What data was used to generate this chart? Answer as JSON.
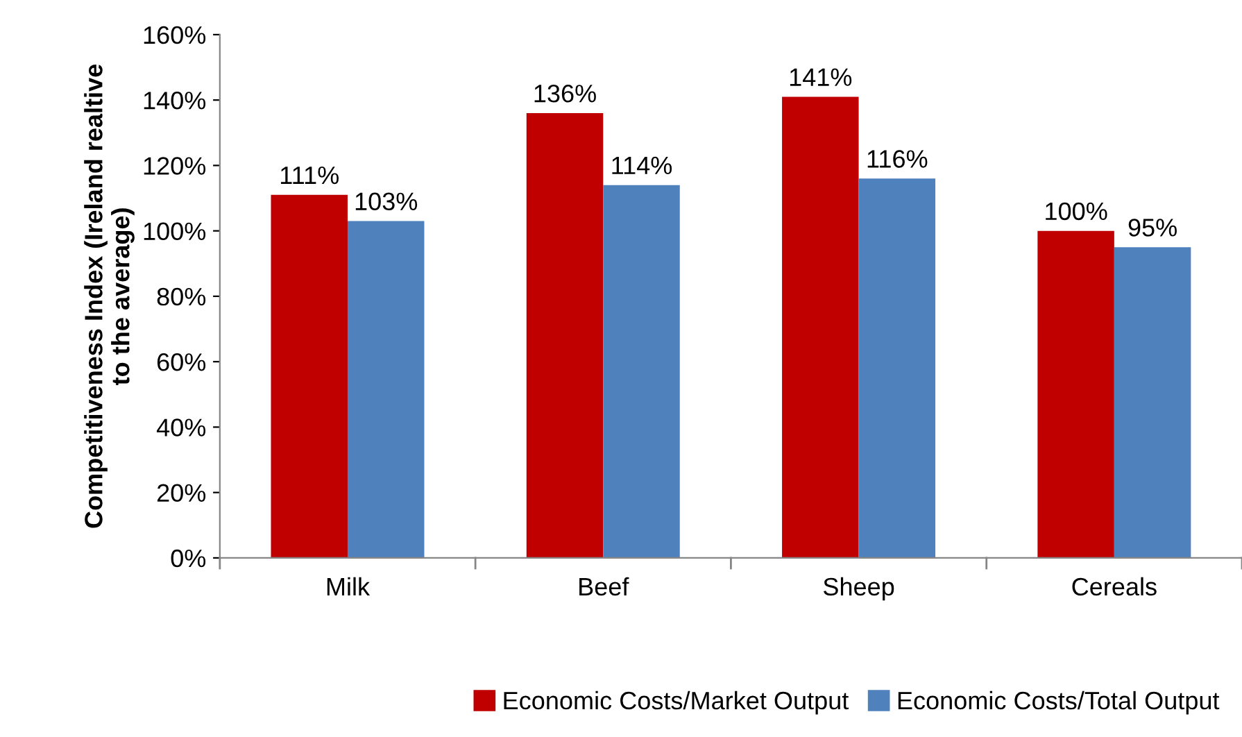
{
  "chart_data": {
    "type": "bar",
    "ylabel": "Competitiveness Index (Ireland realtive\nto the average)",
    "categories": [
      "Milk",
      "Beef",
      "Sheep",
      "Cereals"
    ],
    "series": [
      {
        "name": "Economic Costs/Market Output",
        "color": "#c00000",
        "values": [
          111,
          136,
          141,
          100
        ],
        "value_labels": [
          "111%",
          "136%",
          "141%",
          "100%"
        ]
      },
      {
        "name": "Economic Costs/Total Output",
        "color": "#4f81bd",
        "values": [
          103,
          114,
          116,
          95
        ],
        "value_labels": [
          "103%",
          "114%",
          "116%",
          "95%"
        ]
      }
    ],
    "ylim": [
      0,
      160
    ],
    "yticks": [
      {
        "value": 0,
        "label": "0%"
      },
      {
        "value": 20,
        "label": "20%"
      },
      {
        "value": 40,
        "label": "40%"
      },
      {
        "value": 60,
        "label": "60%"
      },
      {
        "value": 80,
        "label": "80%"
      },
      {
        "value": 100,
        "label": "100%"
      },
      {
        "value": 120,
        "label": "120%"
      },
      {
        "value": 140,
        "label": "140%"
      },
      {
        "value": 160,
        "label": "160%"
      }
    ],
    "grid": false,
    "legend": "bottom"
  }
}
